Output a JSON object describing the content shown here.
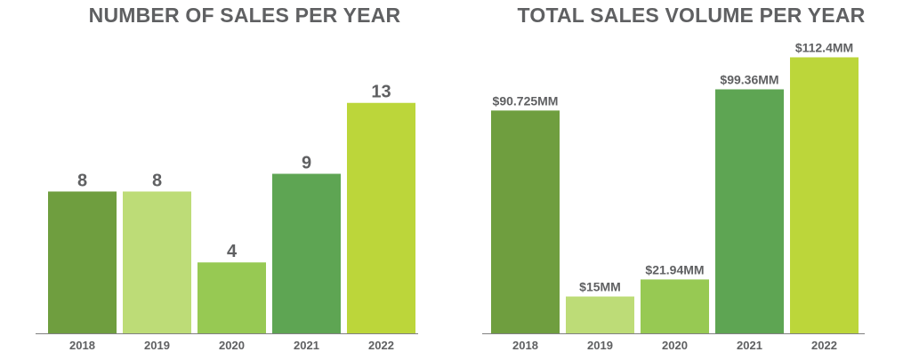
{
  "chart_data": [
    {
      "type": "bar",
      "title": "NUMBER OF SALES PER YEAR",
      "categories": [
        "2018",
        "2019",
        "2020",
        "2021",
        "2022"
      ],
      "values": [
        8,
        8,
        4,
        9,
        13
      ],
      "data_labels": [
        "8",
        "8",
        "4",
        "9",
        "13"
      ],
      "ylim": [
        0,
        17.4
      ],
      "bar_colors": [
        "#6f9e3f",
        "#bddc77",
        "#97c953",
        "#5ea553",
        "#bcd63a"
      ],
      "grid": false,
      "legend": "none"
    },
    {
      "type": "bar",
      "title": "TOTAL SALES VOLUME PER YEAR",
      "categories": [
        "2018",
        "2019",
        "2020",
        "2021",
        "2022"
      ],
      "values": [
        90.725,
        15,
        21.94,
        99.36,
        112.4
      ],
      "data_labels": [
        "$90.725MM",
        "$15MM",
        "$21.94MM",
        "$99.36MM",
        "$112.4MM"
      ],
      "ylim": [
        0,
        125.6
      ],
      "bar_colors": [
        "#6f9e3f",
        "#bddc77",
        "#97c953",
        "#5ea553",
        "#bcd63a"
      ],
      "grid": false,
      "legend": "none"
    }
  ]
}
